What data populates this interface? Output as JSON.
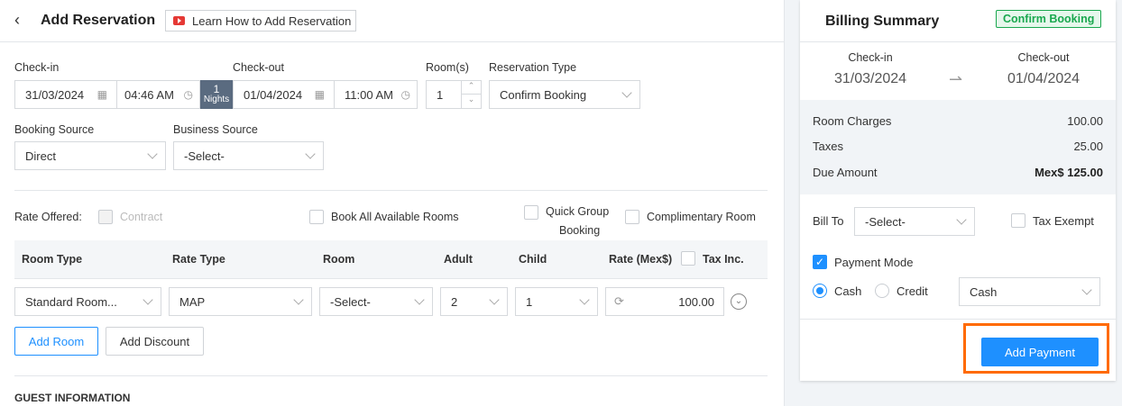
{
  "header": {
    "title": "Add Reservation",
    "learn_label": "Learn How to Add Reservation"
  },
  "stay": {
    "checkin_label": "Check-in",
    "checkin_date": "31/03/2024",
    "checkin_time": "04:46 AM",
    "nights_count": "1",
    "nights_label": "Nights",
    "checkout_label": "Check-out",
    "checkout_date": "01/04/2024",
    "checkout_time": "11:00 AM",
    "rooms_label": "Room(s)",
    "rooms_value": "1",
    "res_type_label": "Reservation Type",
    "res_type_value": "Confirm Booking"
  },
  "source": {
    "booking_label": "Booking Source",
    "booking_value": "Direct",
    "business_label": "Business Source",
    "business_value": "-Select-"
  },
  "options": {
    "rate_offered": "Rate Offered:",
    "contract": "Contract",
    "book_all": "Book All Available Rooms",
    "quick_group_1": "Quick Group",
    "quick_group_2": "Booking",
    "complimentary": "Complimentary Room"
  },
  "table": {
    "headers": [
      "Room Type",
      "Rate Type",
      "Room",
      "Adult",
      "Child",
      "Rate (Mex$)",
      "Tax Inc."
    ],
    "row": {
      "room_type": "Standard Room...",
      "rate_type": "MAP",
      "room": "-Select-",
      "adult": "2",
      "child": "1",
      "rate": "100.00"
    }
  },
  "actions": {
    "add_room": "Add Room",
    "add_discount": "Add Discount"
  },
  "guest_heading": "GUEST INFORMATION",
  "billing": {
    "title": "Billing Summary",
    "status_badge": "Confirm Booking",
    "checkin_label": "Check-in",
    "checkin_date": "31/03/2024",
    "checkout_label": "Check-out",
    "checkout_date": "01/04/2024",
    "room_charges_label": "Room Charges",
    "room_charges": "100.00",
    "taxes_label": "Taxes",
    "taxes": "25.00",
    "due_label": "Due Amount",
    "due": "Mex$ 125.00",
    "bill_to_label": "Bill To",
    "bill_to_value": "-Select-",
    "tax_exempt": "Tax Exempt",
    "payment_mode": "Payment Mode",
    "payment_mode_checked": true,
    "cash": "Cash",
    "credit": "Credit",
    "selected_radio": "Cash",
    "pay_type_value": "Cash",
    "add_payment": "Add Payment"
  },
  "colors": {
    "accent": "#1e90ff",
    "badge_green": "#1aa84f",
    "highlight": "#ff6a00",
    "nights_bg": "#5a6b80"
  }
}
